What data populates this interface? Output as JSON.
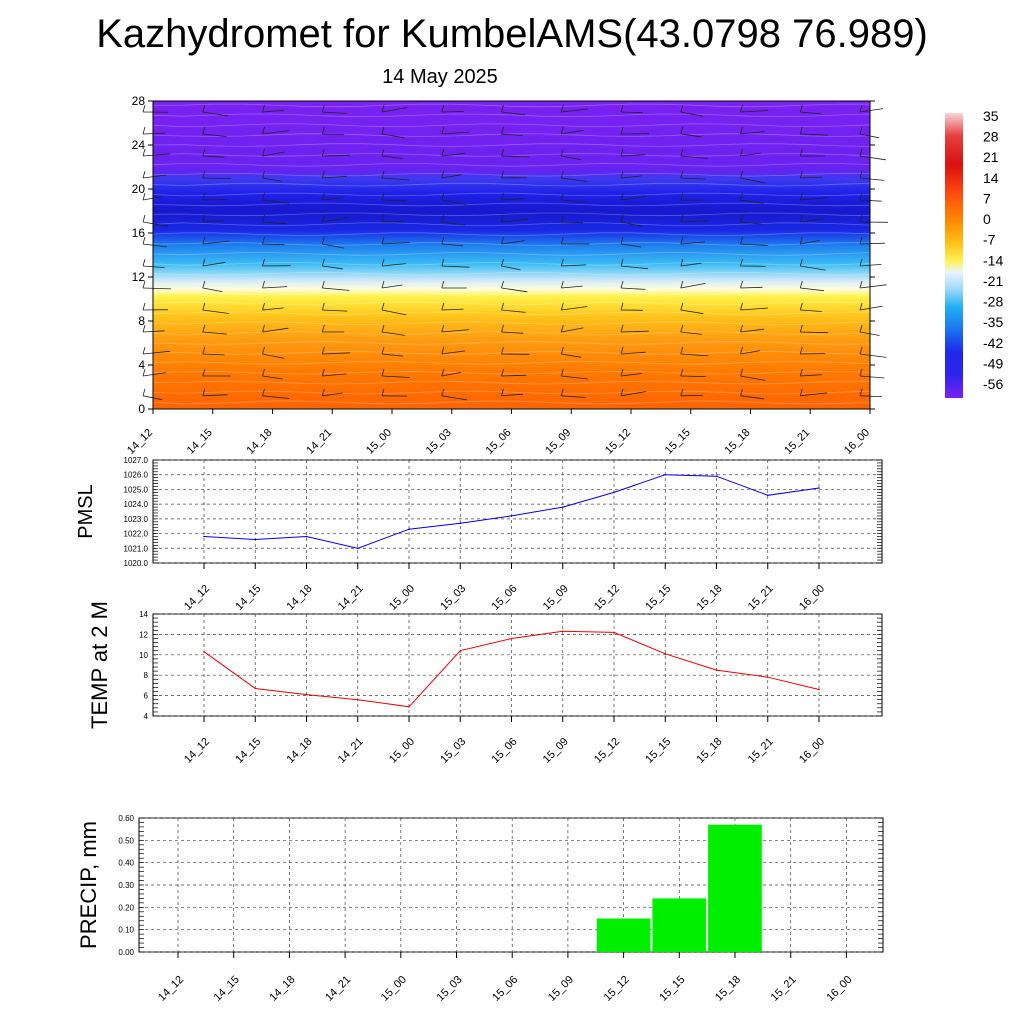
{
  "title": "Kazhydromet for KumbelAMS(43.0798 76.989)",
  "subtitle": "14 May 2025",
  "chart_data": [
    {
      "type": "heatmap",
      "name": "temperature-cross-section",
      "x_categories": [
        "14_12",
        "14_15",
        "14_18",
        "14_21",
        "15_00",
        "15_03",
        "15_06",
        "15_09",
        "15_12",
        "15_15",
        "15_18",
        "15_21",
        "16_00"
      ],
      "y_ticks": [
        0,
        4,
        8,
        12,
        16,
        20,
        24,
        28
      ],
      "ylim": [
        0,
        28
      ],
      "colorbar": {
        "labels": [
          "35",
          "28",
          "21",
          "14",
          "7",
          "0",
          "-7",
          "-14",
          "-21",
          "-28",
          "-35",
          "-42",
          "-49",
          "-56"
        ],
        "colors": {
          "red_top": "#f4c8c8",
          "red": "#dd1010",
          "orange": "#ff6600",
          "yellow": "#fff24a",
          "light": "#cfe8ff",
          "cyan": "#28b8f5",
          "blue": "#2828f0",
          "violet": "#7a1ef5"
        }
      },
      "approx_temperature_profile": [
        {
          "height": 0,
          "temp": 14
        },
        {
          "height": 4,
          "temp": 8
        },
        {
          "height": 8,
          "temp": 2
        },
        {
          "height": 11,
          "temp": -10
        },
        {
          "height": 12,
          "temp": -18
        },
        {
          "height": 14,
          "temp": -30
        },
        {
          "height": 16,
          "temp": -42
        },
        {
          "height": 18,
          "temp": -52
        },
        {
          "height": 20,
          "temp": -53
        },
        {
          "height": 22,
          "temp": -47
        },
        {
          "height": 24,
          "temp": -57
        },
        {
          "height": 28,
          "temp": -58
        }
      ],
      "grid": false
    },
    {
      "type": "line",
      "ylabel": "PMSL",
      "categories": [
        "14_12",
        "14_15",
        "14_18",
        "14_21",
        "15_00",
        "15_03",
        "15_06",
        "15_09",
        "15_12",
        "15_15",
        "15_18",
        "15_21",
        "16_00"
      ],
      "values": [
        1021.8,
        1021.6,
        1021.8,
        1021.0,
        1022.3,
        1022.7,
        1023.2,
        1023.8,
        1024.8,
        1026.0,
        1025.9,
        1024.6,
        1025.1
      ],
      "ylim": [
        1020.0,
        1027.0
      ],
      "y_ticks": [
        "1020.0",
        "1021.0",
        "1022.0",
        "1023.0",
        "1024.0",
        "1025.0",
        "1026.0",
        "1027.0"
      ],
      "color": "#0000ee",
      "grid": true
    },
    {
      "type": "line",
      "ylabel": "TEMP at 2 M",
      "categories": [
        "14_12",
        "14_15",
        "14_18",
        "14_21",
        "15_00",
        "15_03",
        "15_06",
        "15_09",
        "15_12",
        "15_15",
        "15_18",
        "15_21",
        "16_00"
      ],
      "values": [
        10.3,
        6.7,
        6.1,
        5.6,
        4.9,
        10.4,
        11.6,
        12.3,
        12.2,
        10.1,
        8.5,
        7.8,
        6.6
      ],
      "ylim": [
        4,
        14
      ],
      "y_ticks": [
        "4",
        "6",
        "8",
        "10",
        "12",
        "14"
      ],
      "color": "#ee0000",
      "grid": true
    },
    {
      "type": "bar",
      "ylabel": "PRECIP, mm",
      "categories": [
        "14_12",
        "14_15",
        "14_18",
        "14_21",
        "15_00",
        "15_03",
        "15_06",
        "15_09",
        "15_12",
        "15_15",
        "15_18",
        "15_21",
        "16_00"
      ],
      "values": [
        0,
        0,
        0,
        0,
        0,
        0,
        0,
        0,
        0.15,
        0.24,
        0.57,
        0,
        0
      ],
      "ylim": [
        0,
        0.6
      ],
      "y_ticks": [
        "0.00",
        "0.10",
        "0.20",
        "0.30",
        "0.40",
        "0.50",
        "0.60"
      ],
      "color": "#00ee00",
      "grid": true
    }
  ]
}
